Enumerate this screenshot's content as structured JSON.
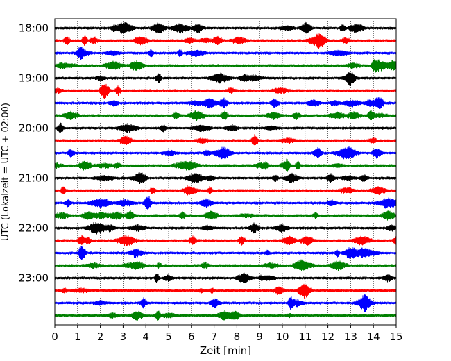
{
  "chart_data": {
    "type": "line",
    "title": "",
    "xlabel": "Zeit  [min]",
    "ylabel": "UTC (Lokalzeit = UTC + 02:00)",
    "xlim": [
      0,
      15
    ],
    "x_ticks": [
      "0",
      "1",
      "2",
      "3",
      "4",
      "5",
      "6",
      "7",
      "8",
      "9",
      "10",
      "11",
      "12",
      "13",
      "14",
      "15"
    ],
    "y_tick_labels": [
      "18:00",
      "19:00",
      "20:00",
      "21:00",
      "22:00",
      "23:00"
    ],
    "y_tick_hours": [
      18,
      19,
      20,
      21,
      22,
      23
    ],
    "trace_start_hour": 18.0,
    "trace_interval_minutes": 15,
    "trace_count": 24,
    "colors": [
      "#000000",
      "#ff0000",
      "#0000ff",
      "#008000"
    ],
    "grid": "vertical dotted lines at each minute",
    "traces": [
      {
        "start": "18:00",
        "color": "#000000"
      },
      {
        "start": "18:15",
        "color": "#ff0000"
      },
      {
        "start": "18:30",
        "color": "#0000ff"
      },
      {
        "start": "18:45",
        "color": "#008000"
      },
      {
        "start": "19:00",
        "color": "#000000"
      },
      {
        "start": "19:15",
        "color": "#ff0000"
      },
      {
        "start": "19:30",
        "color": "#0000ff"
      },
      {
        "start": "19:45",
        "color": "#008000"
      },
      {
        "start": "20:00",
        "color": "#000000"
      },
      {
        "start": "20:15",
        "color": "#ff0000"
      },
      {
        "start": "20:30",
        "color": "#0000ff"
      },
      {
        "start": "20:45",
        "color": "#008000"
      },
      {
        "start": "21:00",
        "color": "#000000"
      },
      {
        "start": "21:15",
        "color": "#ff0000"
      },
      {
        "start": "21:30",
        "color": "#0000ff"
      },
      {
        "start": "21:45",
        "color": "#008000"
      },
      {
        "start": "22:00",
        "color": "#000000"
      },
      {
        "start": "22:15",
        "color": "#ff0000"
      },
      {
        "start": "22:30",
        "color": "#0000ff"
      },
      {
        "start": "22:45",
        "color": "#008000"
      },
      {
        "start": "23:00",
        "color": "#000000"
      },
      {
        "start": "23:15",
        "color": "#ff0000"
      },
      {
        "start": "23:30",
        "color": "#0000ff"
      },
      {
        "start": "23:45",
        "color": "#008000"
      }
    ]
  }
}
